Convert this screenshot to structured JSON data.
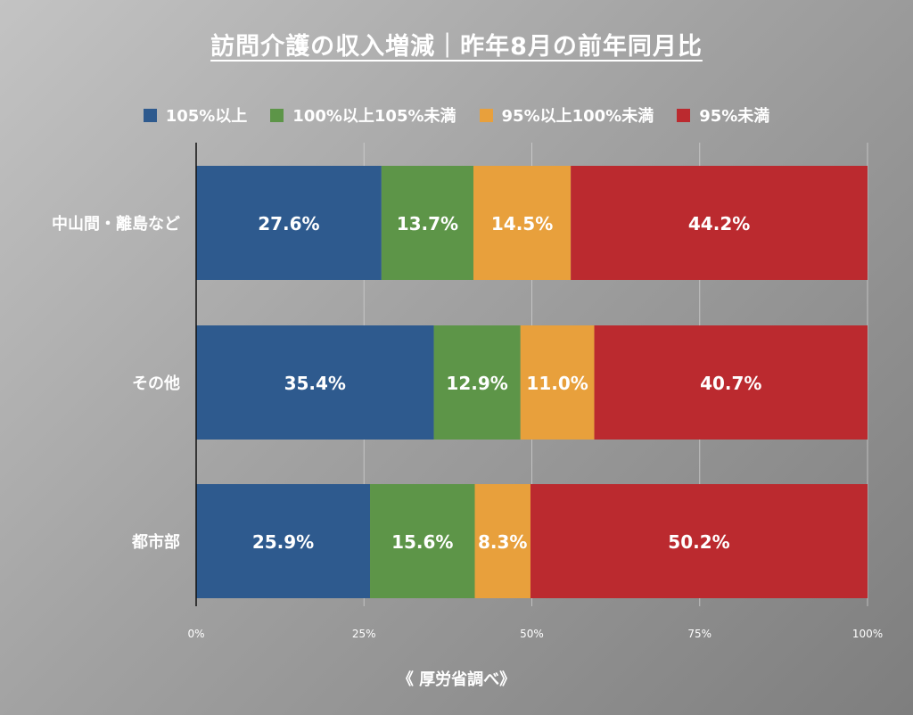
{
  "title": "訪問介護の収入増減｜昨年8月の前年同月比",
  "source": "《 厚労省調べ》",
  "chart_data": {
    "type": "bar",
    "orientation": "horizontal",
    "stacked": true,
    "title": "訪問介護の収入増減｜昨年8月の前年同月比",
    "categories": [
      "中山間・離島など",
      "その他",
      "都市部"
    ],
    "series": [
      {
        "name": "105%以上",
        "color": "#2e5a8e",
        "values": [
          27.6,
          35.4,
          25.9
        ]
      },
      {
        "name": "100%以上105%未満",
        "color": "#5d9548",
        "values": [
          13.7,
          12.9,
          15.6
        ]
      },
      {
        "name": "95%以上100%未満",
        "color": "#e8a03c",
        "values": [
          14.5,
          11.0,
          8.3
        ]
      },
      {
        "name": "95%未満",
        "color": "#bb2a2f",
        "values": [
          44.2,
          40.7,
          50.2
        ]
      }
    ],
    "data_labels": [
      [
        "27.6%",
        "13.7%",
        "14.5%",
        "44.2%"
      ],
      [
        "35.4%",
        "12.9%",
        "11.0%",
        "40.7%"
      ],
      [
        "25.9%",
        "15.6%",
        "8.3%",
        "50.2%"
      ]
    ],
    "x_ticks": [
      "0%",
      "25%",
      "50%",
      "75%",
      "100%"
    ],
    "xlim": [
      0,
      100
    ],
    "grid": true,
    "legend_position": "top"
  }
}
